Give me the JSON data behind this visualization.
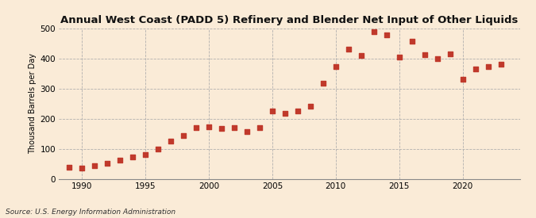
{
  "title": "Annual West Coast (PADD 5) Refinery and Blender Net Input of Other Liquids",
  "ylabel": "Thousand Barrels per Day",
  "source": "Source: U.S. Energy Information Administration",
  "background_color": "#faebd7",
  "plot_background_color": "#faebd7",
  "marker_color": "#c0392b",
  "marker_size": 4,
  "xlim": [
    1988.2,
    2024.5
  ],
  "ylim": [
    0,
    500
  ],
  "yticks": [
    0,
    100,
    200,
    300,
    400,
    500
  ],
  "xticks": [
    1990,
    1995,
    2000,
    2005,
    2010,
    2015,
    2020
  ],
  "years": [
    1989,
    1990,
    1991,
    1992,
    1993,
    1994,
    1995,
    1996,
    1997,
    1998,
    1999,
    2000,
    2001,
    2002,
    2003,
    2004,
    2005,
    2006,
    2007,
    2008,
    2009,
    2010,
    2011,
    2012,
    2013,
    2014,
    2015,
    2016,
    2017,
    2018,
    2019,
    2020,
    2021,
    2022,
    2023
  ],
  "values": [
    38,
    35,
    44,
    51,
    63,
    72,
    80,
    100,
    124,
    143,
    170,
    172,
    168,
    170,
    157,
    170,
    225,
    218,
    225,
    240,
    318,
    372,
    430,
    410,
    490,
    478,
    405,
    456,
    413,
    400,
    415,
    330,
    365,
    373,
    380
  ]
}
